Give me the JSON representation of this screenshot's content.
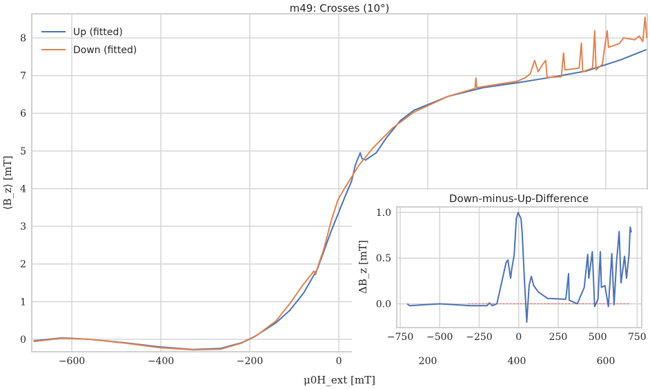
{
  "chart_data": [
    {
      "type": "line",
      "title": "m49: Crosses (10°)",
      "xlabel": "μ0H_ext [mT]",
      "ylabel": "⟨B_z⟩ [mT]",
      "xlim": [
        -690,
        693
      ],
      "ylim": [
        -0.33,
        8.64
      ],
      "xticks": [
        -600,
        -400,
        -200,
        0,
        200,
        400,
        600
      ],
      "yticks": [
        0,
        1,
        2,
        3,
        4,
        5,
        6,
        7,
        8
      ],
      "grid": true,
      "legend_placement": "top-left",
      "series": [
        {
          "name": "Up (fitted)",
          "color": "#4c72b0",
          "points": [
            [
              -686,
              -0.04
            ],
            [
              -621,
              0.04
            ],
            [
              -559,
              0.0
            ],
            [
              -482,
              -0.09
            ],
            [
              -404,
              -0.2
            ],
            [
              -327,
              -0.27
            ],
            [
              -265,
              -0.24
            ],
            [
              -218,
              -0.09
            ],
            [
              -187,
              0.09
            ],
            [
              -141,
              0.44
            ],
            [
              -110,
              0.77
            ],
            [
              -79,
              1.23
            ],
            [
              -48,
              1.87
            ],
            [
              -17,
              2.88
            ],
            [
              14,
              3.79
            ],
            [
              29,
              4.21
            ],
            [
              37,
              4.62
            ],
            [
              48,
              4.95
            ],
            [
              52,
              4.8
            ],
            [
              60,
              4.76
            ],
            [
              84,
              4.95
            ],
            [
              107,
              5.35
            ],
            [
              138,
              5.8
            ],
            [
              169,
              6.08
            ],
            [
              246,
              6.45
            ],
            [
              324,
              6.68
            ],
            [
              401,
              6.81
            ],
            [
              479,
              6.96
            ],
            [
              556,
              7.12
            ],
            [
              634,
              7.42
            ],
            [
              691,
              7.69
            ]
          ]
        },
        {
          "name": "Down (fitted)",
          "color": "#dd8452",
          "points": [
            [
              -686,
              -0.06
            ],
            [
              -621,
              0.03
            ],
            [
              -559,
              0.0
            ],
            [
              -482,
              -0.1
            ],
            [
              -404,
              -0.22
            ],
            [
              -327,
              -0.28
            ],
            [
              -265,
              -0.26
            ],
            [
              -218,
              -0.1
            ],
            [
              -187,
              0.08
            ],
            [
              -141,
              0.49
            ],
            [
              -110,
              0.95
            ],
            [
              -79,
              1.47
            ],
            [
              -56,
              1.81
            ],
            [
              -52,
              1.72
            ],
            [
              -48,
              1.9
            ],
            [
              -33,
              2.42
            ],
            [
              -17,
              3.15
            ],
            [
              -2,
              3.7
            ],
            [
              14,
              4.03
            ],
            [
              45,
              4.62
            ],
            [
              76,
              5.07
            ],
            [
              122,
              5.62
            ],
            [
              169,
              6.03
            ],
            [
              246,
              6.45
            ],
            [
              306,
              6.66
            ],
            [
              308,
              6.94
            ],
            [
              310,
              6.68
            ],
            [
              401,
              6.85
            ],
            [
              420,
              6.95
            ],
            [
              430,
              7.05
            ],
            [
              440,
              7.4
            ],
            [
              448,
              7.1
            ],
            [
              458,
              7.3
            ],
            [
              465,
              7.4
            ],
            [
              468,
              6.95
            ],
            [
              500,
              6.97
            ],
            [
              505,
              7.6
            ],
            [
              508,
              7.15
            ],
            [
              540,
              7.2
            ],
            [
              545,
              7.86
            ],
            [
              548,
              7.1
            ],
            [
              570,
              7.2
            ],
            [
              575,
              8.19
            ],
            [
              578,
              7.15
            ],
            [
              592,
              7.3
            ],
            [
              598,
              7.8
            ],
            [
              603,
              8.19
            ],
            [
              606,
              7.75
            ],
            [
              630,
              7.85
            ],
            [
              640,
              8.0
            ],
            [
              665,
              7.95
            ],
            [
              675,
              8.05
            ],
            [
              683,
              7.9
            ],
            [
              688,
              8.55
            ],
            [
              692,
              8.0
            ]
          ]
        }
      ]
    },
    {
      "type": "line",
      "title": "Down-minus-Up-Difference",
      "xlabel": "",
      "ylabel": "ΔB_z [mT]",
      "xlim": [
        -772,
        779
      ],
      "ylim": [
        -0.26,
        1.06
      ],
      "xticks": [
        -750,
        -500,
        -250,
        0,
        250,
        500,
        750
      ],
      "yticks": [
        "0.0",
        "0.5",
        "1.0"
      ],
      "grid": true,
      "reference_line": {
        "y": 0,
        "x_range": [
          -320,
          706
        ],
        "color": "#e05050",
        "style": "dashed"
      },
      "series": [
        {
          "color": "#4c72b0",
          "points": [
            [
              -706,
              0
            ],
            [
              -690,
              -0.02
            ],
            [
              -600,
              -0.01
            ],
            [
              -500,
              0
            ],
            [
              -400,
              -0.01
            ],
            [
              -300,
              -0.02
            ],
            [
              -200,
              -0.02
            ],
            [
              -185,
              0.01
            ],
            [
              -167,
              -0.02
            ],
            [
              -138,
              0
            ],
            [
              -80,
              0.45
            ],
            [
              -68,
              0.48
            ],
            [
              -51,
              0.28
            ],
            [
              -44,
              0.38
            ],
            [
              -29,
              0.53
            ],
            [
              -15,
              0.93
            ],
            [
              -4,
              1.0
            ],
            [
              15,
              0.93
            ],
            [
              22,
              0.78
            ],
            [
              36,
              0.28
            ],
            [
              51,
              -0.2
            ],
            [
              66,
              0.2
            ],
            [
              80,
              0.3
            ],
            [
              95,
              0.2
            ],
            [
              124,
              0.13
            ],
            [
              182,
              0.06
            ],
            [
              298,
              0.05
            ],
            [
              316,
              0.33
            ],
            [
              320,
              0.04
            ],
            [
              371,
              0
            ],
            [
              415,
              0.18
            ],
            [
              437,
              0.54
            ],
            [
              444,
              0.28
            ],
            [
              466,
              0.57
            ],
            [
              481,
              -0.03
            ],
            [
              502,
              0.05
            ],
            [
              517,
              0.57
            ],
            [
              524,
              0.18
            ],
            [
              546,
              0.2
            ],
            [
              568,
              -0.03
            ],
            [
              590,
              0.55
            ],
            [
              604,
              -0.01
            ],
            [
              619,
              0.45
            ],
            [
              636,
              0.79
            ],
            [
              648,
              0.23
            ],
            [
              670,
              0.52
            ],
            [
              683,
              0.28
            ],
            [
              698,
              0.53
            ],
            [
              706,
              0.84
            ],
            [
              713,
              0.78
            ]
          ]
        }
      ]
    }
  ]
}
